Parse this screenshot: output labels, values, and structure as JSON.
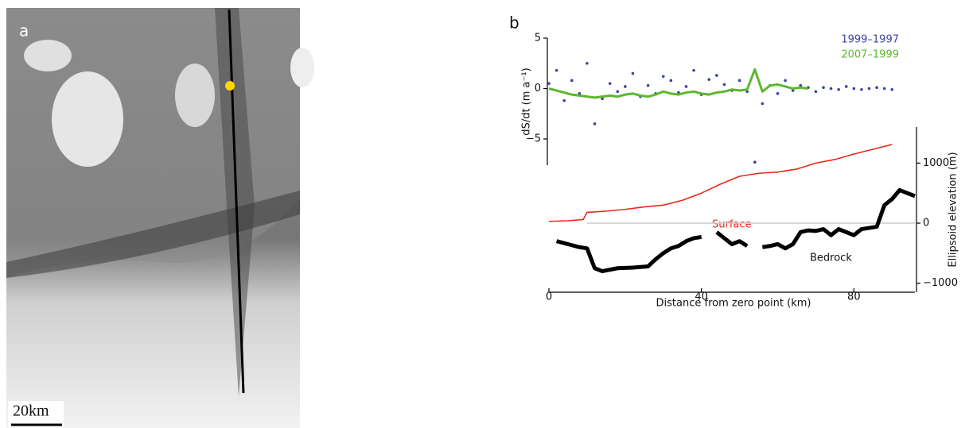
{
  "panel_a": {
    "label": "a",
    "scale_bar": "20km"
  },
  "chart_data": {
    "type": "line",
    "panel_label": "b",
    "ylabel": "dS/dt (m a⁻¹)",
    "y2label": "Ellipsoid elevation (m)",
    "xlabel": "Distance from zero point (km)",
    "annotations": [
      "Surface",
      "Bedrock"
    ],
    "xlim": [
      0,
      96
    ],
    "xticks": [
      0,
      40,
      80
    ],
    "ylim": [
      -7.6,
      5
    ],
    "yticks": [
      5,
      0,
      {
        "value": -5,
        "label": "−5"
      }
    ],
    "y2lim": [
      -1150,
      1600
    ],
    "y2ticks": [
      1000,
      0,
      {
        "value": -1000,
        "label": "−1000"
      }
    ],
    "series": [
      {
        "name": "1999–1997",
        "color": "#3b44a8",
        "marker": "dot",
        "axis": "y",
        "x": [
          0,
          2,
          4,
          6,
          8,
          10,
          12,
          14,
          16,
          18,
          20,
          22,
          24,
          26,
          28,
          30,
          32,
          34,
          36,
          38,
          40,
          42,
          44,
          46,
          48,
          50,
          52,
          54,
          56,
          58,
          60,
          62,
          64,
          66,
          68,
          70,
          72,
          74,
          76,
          78,
          80,
          82,
          84,
          86,
          88,
          90
        ],
        "values": [
          0.5,
          1.8,
          -1.2,
          0.8,
          -0.5,
          2.5,
          -3.5,
          -1,
          0.5,
          -0.3,
          0.2,
          1.5,
          -0.8,
          0.3,
          -0.5,
          1.2,
          0.8,
          -0.4,
          0.2,
          1.8,
          -0.6,
          0.9,
          1.3,
          0.4,
          -0.2,
          0.8,
          -0.3,
          -7.3,
          -1.5,
          0.3,
          -0.5,
          0.8,
          -0.2,
          0.3,
          0.1,
          -0.3,
          0.1,
          0,
          -0.1,
          0.2,
          0,
          -0.1,
          0,
          0.1,
          0,
          -0.1
        ]
      },
      {
        "name": "2007–1999",
        "color": "#5cb82e",
        "axis": "y",
        "x": [
          0,
          2,
          4,
          6,
          8,
          10,
          12,
          14,
          16,
          18,
          20,
          22,
          24,
          26,
          28,
          30,
          32,
          34,
          36,
          38,
          40,
          42,
          44,
          46,
          48,
          50,
          52,
          54,
          56,
          58,
          60,
          62,
          64,
          66,
          68
        ],
        "values": [
          0,
          -0.2,
          -0.4,
          -0.6,
          -0.7,
          -0.8,
          -0.9,
          -0.8,
          -0.7,
          -0.8,
          -0.6,
          -0.5,
          -0.7,
          -0.8,
          -0.6,
          -0.3,
          -0.5,
          -0.6,
          -0.4,
          -0.3,
          -0.5,
          -0.6,
          -0.4,
          -0.3,
          -0.1,
          -0.2,
          -0.1,
          1.9,
          -0.3,
          0.3,
          0.4,
          0.2,
          0,
          0.1,
          0
        ]
      },
      {
        "name": "Surface",
        "color": "#e8291c",
        "axis": "y2",
        "x": [
          0,
          5,
          9,
          10,
          15,
          20,
          25,
          30,
          35,
          40,
          45,
          50,
          55,
          60,
          65,
          70,
          75,
          80,
          85,
          90
        ],
        "values": [
          30,
          40,
          60,
          180,
          200,
          230,
          270,
          300,
          380,
          500,
          650,
          780,
          830,
          850,
          900,
          1000,
          1060,
          1150,
          1230,
          1310
        ]
      },
      {
        "name": "Bedrock",
        "color": "#000000",
        "axis": "y2",
        "x": [
          2,
          5,
          8,
          10,
          12,
          14,
          18,
          22,
          26,
          28,
          30,
          32,
          34,
          36,
          38,
          40,
          41,
          42,
          44,
          46,
          48,
          50,
          52,
          53,
          54,
          56,
          58,
          60,
          62,
          64,
          66,
          68,
          70,
          72,
          74,
          76,
          78,
          80,
          82,
          84,
          86,
          88,
          90,
          92,
          94,
          96
        ],
        "values": [
          -300,
          -350,
          -400,
          -420,
          -750,
          -800,
          -750,
          -740,
          -720,
          -600,
          -500,
          -420,
          -380,
          -300,
          -250,
          -230,
          null,
          null,
          -150,
          -250,
          -350,
          -300,
          -380,
          null,
          null,
          -400,
          -380,
          -350,
          -420,
          -350,
          -150,
          -120,
          -130,
          -100,
          -200,
          -100,
          -150,
          -200,
          -100,
          -80,
          -60,
          300,
          400,
          550,
          500,
          450
        ]
      }
    ]
  }
}
